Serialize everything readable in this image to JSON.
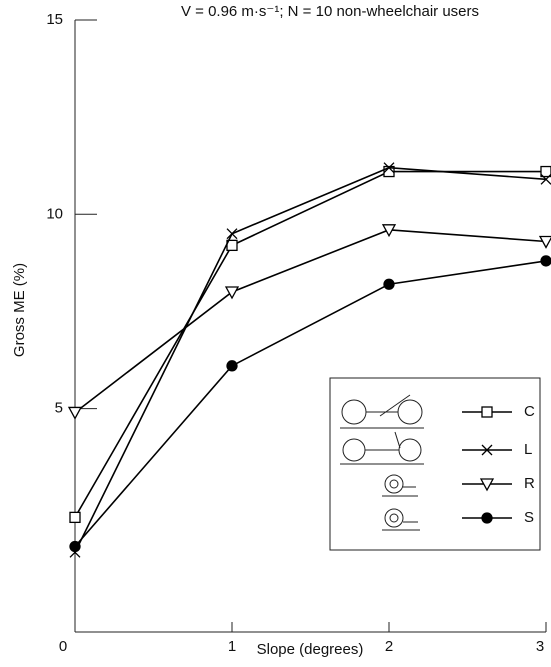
{
  "chart_data": {
    "type": "line",
    "title": "V = 0.96 m·s⁻¹; N = 10 non-wheelchair users",
    "x_label": "Slope (degrees)",
    "y_label": "Gross ME (%)",
    "x": [
      0,
      1,
      2,
      3
    ],
    "series": [
      {
        "name": "C",
        "color": "#000000",
        "marker": "square",
        "values": [
          2.2,
          9.2,
          11.1,
          11.1
        ]
      },
      {
        "name": "L",
        "color": "#000000",
        "marker": "x",
        "values": [
          1.3,
          9.5,
          11.2,
          10.9
        ]
      },
      {
        "name": "R",
        "color": "#000000",
        "marker": "triangle-down",
        "values": [
          4.9,
          8.0,
          9.6,
          9.3
        ]
      },
      {
        "name": "S",
        "color": "#000000",
        "marker": "circle",
        "values": [
          1.45,
          6.1,
          8.2,
          8.8
        ]
      }
    ],
    "xlim": [
      0,
      3
    ],
    "xticks": [
      0,
      1,
      2,
      3
    ],
    "ylim": [
      -0.75,
      15
    ],
    "yticks": [
      5,
      10,
      15
    ],
    "legend": "lower-right"
  }
}
